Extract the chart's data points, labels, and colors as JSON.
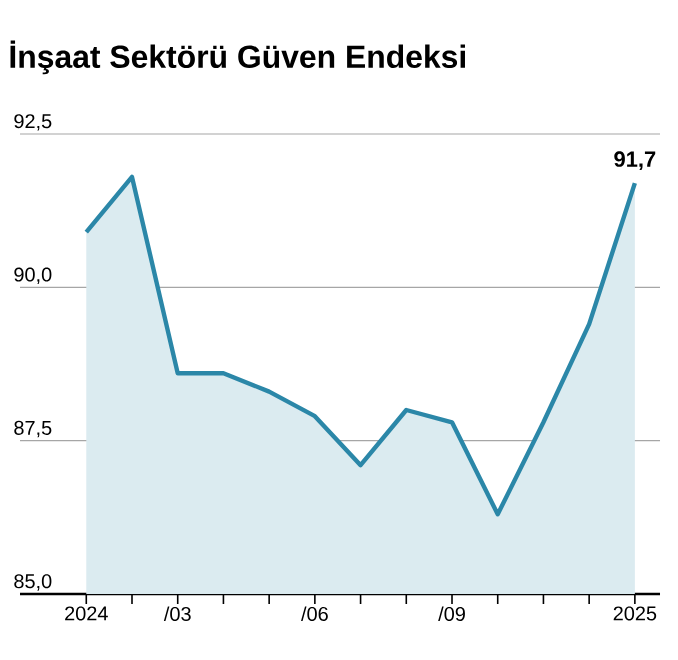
{
  "chart_data": {
    "type": "area",
    "title": "İnşaat Sektörü Güven Endeksi",
    "categories": [
      "2024",
      null,
      "/03",
      null,
      null,
      "/06",
      null,
      null,
      "/09",
      null,
      null,
      null,
      "2025"
    ],
    "values": [
      90.9,
      91.8,
      88.6,
      88.6,
      88.3,
      87.9,
      87.1,
      88.0,
      87.8,
      86.3,
      87.8,
      89.4,
      91.7
    ],
    "value_labels": [
      null,
      null,
      null,
      null,
      null,
      null,
      null,
      null,
      null,
      null,
      null,
      null,
      "91,7"
    ],
    "color": "#2b87a8",
    "ylim": [
      85,
      92.5
    ],
    "yticks": [
      {
        "value": 85,
        "label": "85,0"
      },
      {
        "value": 87.5,
        "label": "87,5"
      },
      {
        "value": 90,
        "label": "90,0"
      },
      {
        "value": 92.5,
        "label": "92,5"
      }
    ],
    "grid": "y"
  }
}
